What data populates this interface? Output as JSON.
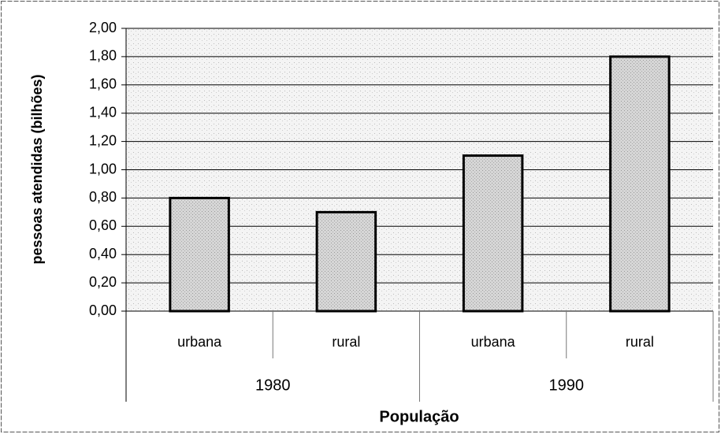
{
  "chart_data": {
    "type": "bar",
    "x_label": "População",
    "y_label": "pessoas atendidas (bilhões)",
    "categories": [
      "urbana",
      "rural",
      "urbana",
      "rural"
    ],
    "groups": [
      "1980",
      "1990"
    ],
    "values": [
      0.8,
      0.7,
      1.1,
      1.8
    ],
    "color": "#c8c8c8",
    "ylim": [
      0,
      2
    ],
    "yticks": [
      {
        "value": 0,
        "label": "0,00"
      },
      {
        "value": 0.2,
        "label": "0,20"
      },
      {
        "value": 0.4,
        "label": "0,40"
      },
      {
        "value": 0.6,
        "label": "0,60"
      },
      {
        "value": 0.8,
        "label": "0,80"
      },
      {
        "value": 1,
        "label": "1,00"
      },
      {
        "value": 1.2,
        "label": "1,20"
      },
      {
        "value": 1.4,
        "label": "1,40"
      },
      {
        "value": 1.6,
        "label": "1,60"
      },
      {
        "value": 1.8,
        "label": "1,80"
      },
      {
        "value": 2,
        "label": "2,00"
      }
    ],
    "grid": true
  }
}
